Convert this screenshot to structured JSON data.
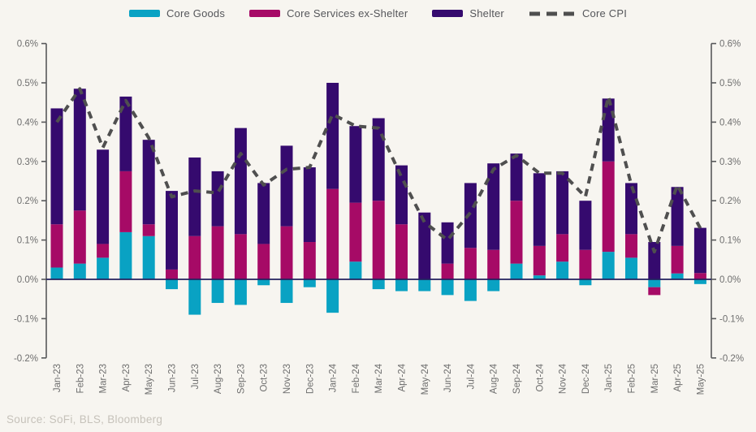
{
  "source": "Source: SoFi, BLS, Bloomberg",
  "legend": [
    {
      "label": "Core Goods",
      "color": "#09a2c3",
      "type": "swatch"
    },
    {
      "label": "Core Services ex-Shelter",
      "color": "#a60a66",
      "type": "swatch"
    },
    {
      "label": "Shelter",
      "color": "#350a6e",
      "type": "swatch"
    },
    {
      "label": "Core CPI",
      "color": "#4f4f4f",
      "type": "dashed-line"
    }
  ],
  "chart_data": {
    "type": "bar",
    "subtype": "stacked-bars-with-dashed-line",
    "title": "",
    "xlabel": "",
    "ylabel": "",
    "units": "percent month-over-month",
    "grid": false,
    "legend_position": "top-center",
    "dual_y_axis": true,
    "ylim": [
      -0.2,
      0.6
    ],
    "yticks": [
      "0.6%",
      "0.5%",
      "0.4%",
      "0.3%",
      "0.2%",
      "0.1%",
      "0.0%",
      "-0.1%",
      "-0.2%"
    ],
    "ytick_values": [
      0.6,
      0.5,
      0.4,
      0.3,
      0.2,
      0.1,
      0.0,
      -0.1,
      -0.2
    ],
    "categories": [
      "Jan-23",
      "Feb-23",
      "Mar-23",
      "Apr-23",
      "May-23",
      "Jun-23",
      "Jul-23",
      "Aug-23",
      "Sep-23",
      "Oct-23",
      "Nov-23",
      "Dec-23",
      "Jan-24",
      "Feb-24",
      "Mar-24",
      "Apr-24",
      "May-24",
      "Jun-24",
      "Jul-24",
      "Aug-24",
      "Sep-24",
      "Oct-24",
      "Nov-24",
      "Dec-24",
      "Jan-25",
      "Feb-25",
      "Mar-25",
      "Apr-25",
      "May-25"
    ],
    "series": [
      {
        "name": "Core Goods",
        "color": "#09a2c3",
        "values": [
          0.03,
          0.04,
          0.055,
          0.12,
          0.11,
          -0.025,
          -0.09,
          -0.06,
          -0.065,
          -0.015,
          -0.06,
          -0.02,
          -0.085,
          0.045,
          -0.025,
          -0.03,
          -0.03,
          -0.04,
          -0.055,
          -0.03,
          0.04,
          0.01,
          0.045,
          -0.015,
          0.07,
          0.055,
          -0.02,
          0.015,
          -0.012
        ]
      },
      {
        "name": "Core Services ex-Shelter",
        "color": "#a60a66",
        "values": [
          0.11,
          0.135,
          0.035,
          0.155,
          0.03,
          0.025,
          0.11,
          0.135,
          0.115,
          0.09,
          0.135,
          0.095,
          0.23,
          0.15,
          0.2,
          0.14,
          0.0,
          0.04,
          0.08,
          0.075,
          0.16,
          0.075,
          0.07,
          0.075,
          0.23,
          0.06,
          -0.02,
          0.07,
          0.016
        ]
      },
      {
        "name": "Shelter",
        "color": "#350a6e",
        "values": [
          0.295,
          0.31,
          0.24,
          0.19,
          0.215,
          0.2,
          0.2,
          0.14,
          0.27,
          0.155,
          0.205,
          0.19,
          0.27,
          0.195,
          0.21,
          0.15,
          0.17,
          0.105,
          0.165,
          0.22,
          0.12,
          0.185,
          0.16,
          0.125,
          0.16,
          0.13,
          0.095,
          0.15,
          0.115
        ]
      }
    ],
    "line_series": {
      "name": "Core CPI",
      "color": "#4f4f4f",
      "style": "dashed",
      "values": [
        0.4,
        0.485,
        0.335,
        0.455,
        0.36,
        0.21,
        0.225,
        0.22,
        0.32,
        0.24,
        0.28,
        0.285,
        0.42,
        0.39,
        0.385,
        0.26,
        0.145,
        0.1,
        0.17,
        0.28,
        0.315,
        0.27,
        0.27,
        0.21,
        0.465,
        0.24,
        0.07,
        0.24,
        0.13
      ]
    },
    "axis_colors": {
      "axis_line": "#58595b",
      "tick_label": "#6e6e6e",
      "zero_line": "#23215e"
    }
  }
}
